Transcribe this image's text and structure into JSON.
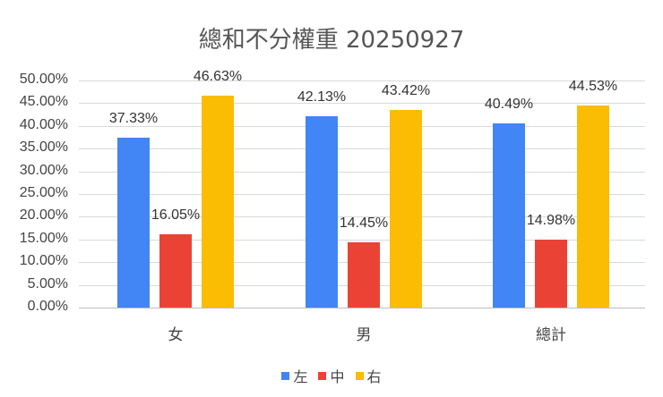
{
  "chart_data": {
    "type": "bar",
    "title": "總和不分權重 20250927",
    "categories": [
      "女",
      "男",
      "總計"
    ],
    "series": [
      {
        "name": "左",
        "color": "#4285F4",
        "values": [
          37.33,
          42.13,
          40.49
        ],
        "labels": [
          "37.33%",
          "42.13%",
          "40.49%"
        ]
      },
      {
        "name": "中",
        "color": "#EA4335",
        "values": [
          16.05,
          14.45,
          14.98
        ],
        "labels": [
          "16.05%",
          "14.45%",
          "14.98%"
        ]
      },
      {
        "name": "右",
        "color": "#FBBC04",
        "values": [
          46.63,
          43.42,
          44.53
        ],
        "labels": [
          "46.63%",
          "43.42%",
          "44.53%"
        ]
      }
    ],
    "xlabel": "",
    "ylabel": "",
    "ylim": [
      0,
      50
    ],
    "yticks": [
      "0.00%",
      "5.00%",
      "10.00%",
      "15.00%",
      "20.00%",
      "25.00%",
      "30.00%",
      "35.00%",
      "40.00%",
      "45.00%",
      "50.00%"
    ],
    "grid": true,
    "legend_position": "bottom"
  }
}
